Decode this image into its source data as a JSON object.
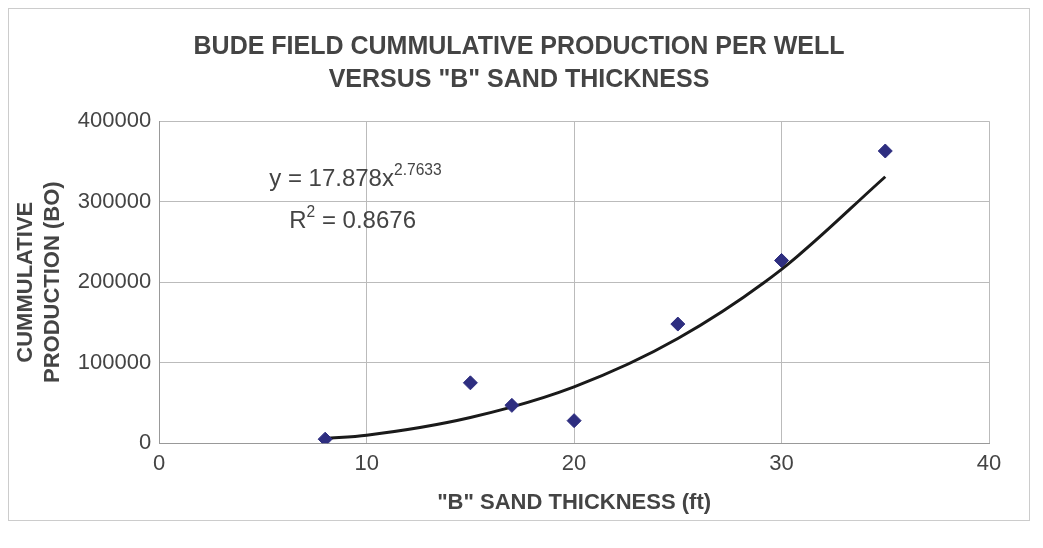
{
  "chart_data": {
    "type": "scatter",
    "title": "BUDE FIELD CUMMULATIVE PRODUCTION PER WELL VERSUS \"B\" SAND THICKNESS",
    "xlabel": "\"B\" SAND THICKNESS (ft)",
    "ylabel": "CUMMULATIVE PRODUCTION (BO)",
    "series": [
      {
        "color": "#2e2e80",
        "marker": "diamond",
        "x": [
          8,
          15,
          17,
          20,
          25,
          30,
          35
        ],
        "values": [
          5000,
          75000,
          47000,
          28000,
          148000,
          227000,
          363000
        ]
      },
      {
        "type": "line",
        "color": "#1a1a1a",
        "marker": "none",
        "x": [
          8,
          10,
          15,
          20,
          25,
          30,
          35
        ],
        "values": [
          6000,
          10000,
          32000,
          70000,
          130000,
          216000,
          331000
        ]
      }
    ],
    "annotations": [
      "y = 17.878x$^{2.7633}$",
      "R$^{2}$ = 0.8676"
    ],
    "xlim": [
      0,
      40
    ],
    "xticks": [
      0,
      10,
      20,
      30,
      40
    ],
    "ylim": [
      0,
      400000
    ],
    "yticks": [
      0,
      100000,
      200000,
      300000,
      400000
    ],
    "grid": true,
    "legend": false
  }
}
